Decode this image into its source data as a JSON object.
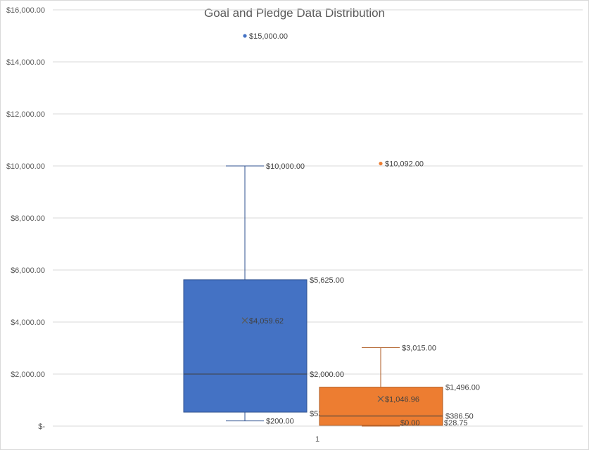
{
  "chart_data": {
    "type": "box",
    "title": "Goal and Pledge Data Distribution",
    "xlabel": "",
    "ylabel": "",
    "categories": [
      "1"
    ],
    "ylim": [
      0,
      16000
    ],
    "y_ticks": [
      0,
      2000,
      4000,
      6000,
      8000,
      10000,
      12000,
      14000,
      16000
    ],
    "y_tick_labels": [
      "$-",
      "$2,000.00",
      "$4,000.00",
      "$6,000.00",
      "$8,000.00",
      "$10,000.00",
      "$12,000.00",
      "$14,000.00",
      "$16,000.00"
    ],
    "grid": true,
    "legend": "none",
    "series": [
      {
        "color": "#4472c4",
        "min": 200,
        "q1": 537.5,
        "median": 2000,
        "q3": 5625,
        "max": 10000,
        "mean": 4059.62,
        "outliers": [
          15000
        ],
        "labels": {
          "min": "$200.00",
          "q1": "$537.50",
          "median": "$2,000.00",
          "q3": "$5,625.00",
          "max": "$10,000.00",
          "mean": "$4,059.62",
          "outliers": [
            "$15,000.00"
          ]
        }
      },
      {
        "color": "#ed7d31",
        "min": 0,
        "q1": 28.75,
        "median": 386.5,
        "q3": 1496,
        "max": 3015,
        "mean": 1046.96,
        "outliers": [
          10092
        ],
        "labels": {
          "min": "$0.00",
          "q1": "$28.75",
          "median": "$386.50",
          "q3": "$1,496.00",
          "max": "$3,015.00",
          "mean": "$1,046.96",
          "outliers": [
            "$10,092.00"
          ]
        }
      }
    ]
  }
}
